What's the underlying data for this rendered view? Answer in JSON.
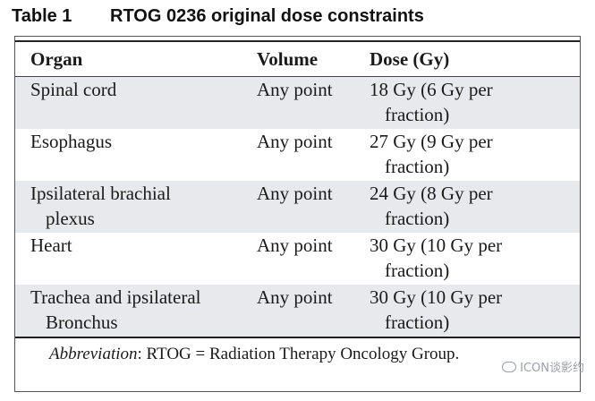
{
  "caption": {
    "label": "Table 1",
    "title": "RTOG 0236 original dose constraints"
  },
  "table": {
    "headers": [
      "Organ",
      "Volume",
      "Dose (Gy)"
    ],
    "rows": [
      {
        "organ": [
          "Spinal cord"
        ],
        "volume": "Any point",
        "dose": [
          "18 Gy (6 Gy per",
          "fraction)"
        ]
      },
      {
        "organ": [
          "Esophagus"
        ],
        "volume": "Any point",
        "dose": [
          "27 Gy (9 Gy per",
          "fraction)"
        ]
      },
      {
        "organ": [
          "Ipsilateral brachial",
          "plexus"
        ],
        "volume": "Any point",
        "dose": [
          "24 Gy (8 Gy per",
          "fraction)"
        ]
      },
      {
        "organ": [
          "Heart"
        ],
        "volume": "Any point",
        "dose": [
          "30 Gy (10 Gy per",
          "fraction)"
        ]
      },
      {
        "organ": [
          "Trachea and ipsilateral",
          "Bronchus"
        ],
        "volume": "Any point",
        "dose": [
          "30 Gy (10 Gy per",
          "fraction)"
        ]
      }
    ]
  },
  "footnote": {
    "label": "Abbreviation",
    "text": ": RTOG = Radiation Therapy Oncology Group."
  },
  "watermark": {
    "text": "ICON谈影约",
    "icon": "wechat-icon"
  },
  "colors": {
    "row_shade": "#e8e9ec",
    "rule": "#222222",
    "text": "#1a1a1a"
  }
}
